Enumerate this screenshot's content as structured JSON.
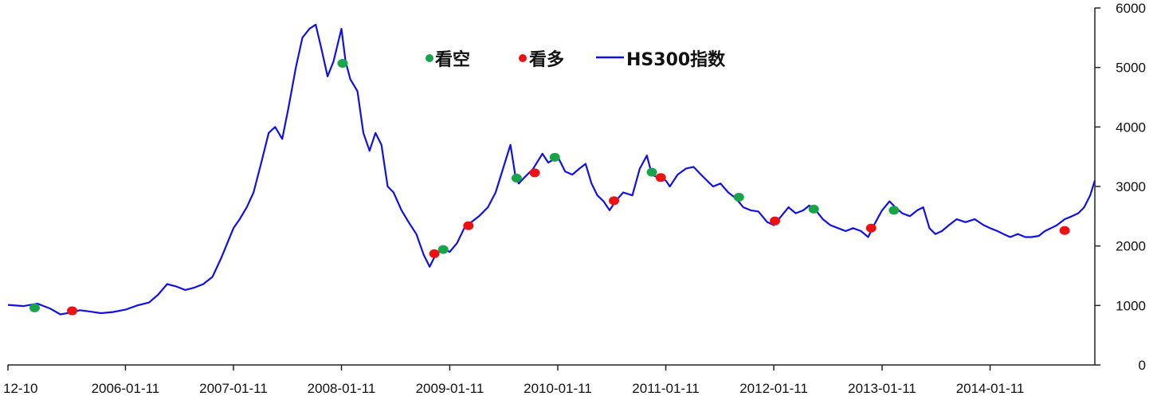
{
  "chart_data": {
    "type": "line",
    "title": "",
    "xlabel": "",
    "ylabel": "",
    "ylim": [
      0,
      6000
    ],
    "yticks": [
      0,
      1000,
      2000,
      3000,
      4000,
      5000,
      6000
    ],
    "xlim": [
      "2004-12-10",
      "2014-12-31"
    ],
    "xticks": [
      {
        "date": "2004-12-10",
        "label": "12-10"
      },
      {
        "date": "2006-01-11",
        "label": "2006-01-11"
      },
      {
        "date": "2007-01-11",
        "label": "2007-01-11"
      },
      {
        "date": "2008-01-11",
        "label": "2008-01-11"
      },
      {
        "date": "2009-01-11",
        "label": "2009-01-11"
      },
      {
        "date": "2010-01-11",
        "label": "2010-01-11"
      },
      {
        "date": "2011-01-11",
        "label": "2011-01-11"
      },
      {
        "date": "2012-01-11",
        "label": "2012-01-11"
      },
      {
        "date": "2013-01-11",
        "label": "2013-01-11"
      },
      {
        "date": "2014-01-11",
        "label": "2014-01-11"
      }
    ],
    "grid": false,
    "legend_position": "top-center",
    "legend": [
      {
        "label": "看空",
        "marker": "dot",
        "color": "#19a34a"
      },
      {
        "label": "看多",
        "marker": "dot",
        "color": "#ee1111"
      },
      {
        "label": "HS300指数",
        "marker": "line",
        "color": "#1010e8"
      }
    ],
    "series": [
      {
        "name": "HS300指数",
        "color": "#1010e8",
        "points": [
          [
            "2004-12-10",
            1010
          ],
          [
            "2005-02-01",
            990
          ],
          [
            "2005-03-20",
            1030
          ],
          [
            "2005-05-01",
            950
          ],
          [
            "2005-06-05",
            850
          ],
          [
            "2005-07-10",
            880
          ],
          [
            "2005-08-10",
            920
          ],
          [
            "2005-09-10",
            900
          ],
          [
            "2005-10-20",
            870
          ],
          [
            "2005-12-01",
            890
          ],
          [
            "2006-01-11",
            930
          ],
          [
            "2006-02-20",
            1000
          ],
          [
            "2006-04-01",
            1050
          ],
          [
            "2006-05-01",
            1180
          ],
          [
            "2006-06-01",
            1360
          ],
          [
            "2006-07-01",
            1320
          ],
          [
            "2006-08-01",
            1260
          ],
          [
            "2006-09-01",
            1300
          ],
          [
            "2006-10-01",
            1360
          ],
          [
            "2006-11-01",
            1480
          ],
          [
            "2006-12-01",
            1800
          ],
          [
            "2007-01-11",
            2300
          ],
          [
            "2007-02-01",
            2450
          ],
          [
            "2007-02-25",
            2650
          ],
          [
            "2007-03-20",
            2900
          ],
          [
            "2007-04-15",
            3400
          ],
          [
            "2007-05-10",
            3900
          ],
          [
            "2007-06-01",
            4000
          ],
          [
            "2007-06-25",
            3800
          ],
          [
            "2007-07-15",
            4300
          ],
          [
            "2007-08-10",
            5000
          ],
          [
            "2007-09-01",
            5500
          ],
          [
            "2007-09-25",
            5650
          ],
          [
            "2007-10-16",
            5720
          ],
          [
            "2007-11-05",
            5300
          ],
          [
            "2007-11-25",
            4850
          ],
          [
            "2007-12-15",
            5100
          ],
          [
            "2008-01-11",
            5650
          ],
          [
            "2008-01-25",
            5100
          ],
          [
            "2008-02-10",
            4800
          ],
          [
            "2008-03-05",
            4600
          ],
          [
            "2008-03-25",
            3900
          ],
          [
            "2008-04-15",
            3600
          ],
          [
            "2008-05-05",
            3900
          ],
          [
            "2008-05-25",
            3700
          ],
          [
            "2008-06-15",
            3000
          ],
          [
            "2008-07-05",
            2900
          ],
          [
            "2008-08-01",
            2600
          ],
          [
            "2008-08-25",
            2400
          ],
          [
            "2008-09-20",
            2200
          ],
          [
            "2008-10-15",
            1850
          ],
          [
            "2008-11-04",
            1650
          ],
          [
            "2008-11-25",
            1860
          ],
          [
            "2008-12-20",
            1950
          ],
          [
            "2009-01-11",
            1900
          ],
          [
            "2009-02-05",
            2050
          ],
          [
            "2009-03-01",
            2300
          ],
          [
            "2009-03-25",
            2400
          ],
          [
            "2009-04-20",
            2500
          ],
          [
            "2009-05-20",
            2650
          ],
          [
            "2009-06-15",
            2900
          ],
          [
            "2009-07-10",
            3300
          ],
          [
            "2009-08-04",
            3700
          ],
          [
            "2009-08-20",
            3200
          ],
          [
            "2009-09-01",
            3050
          ],
          [
            "2009-09-20",
            3150
          ],
          [
            "2009-10-20",
            3300
          ],
          [
            "2009-11-20",
            3550
          ],
          [
            "2009-12-10",
            3400
          ],
          [
            "2010-01-11",
            3500
          ],
          [
            "2010-02-05",
            3250
          ],
          [
            "2010-03-01",
            3200
          ],
          [
            "2010-03-25",
            3300
          ],
          [
            "2010-04-15",
            3380
          ],
          [
            "2010-05-05",
            3050
          ],
          [
            "2010-05-25",
            2850
          ],
          [
            "2010-06-15",
            2750
          ],
          [
            "2010-07-05",
            2600
          ],
          [
            "2010-07-25",
            2750
          ],
          [
            "2010-08-20",
            2900
          ],
          [
            "2010-09-20",
            2850
          ],
          [
            "2010-10-15",
            3300
          ],
          [
            "2010-11-08",
            3520
          ],
          [
            "2010-11-25",
            3200
          ],
          [
            "2010-12-15",
            3150
          ],
          [
            "2011-01-11",
            3100
          ],
          [
            "2011-01-25",
            3000
          ],
          [
            "2011-02-20",
            3200
          ],
          [
            "2011-03-20",
            3300
          ],
          [
            "2011-04-15",
            3330
          ],
          [
            "2011-05-10",
            3200
          ],
          [
            "2011-05-30",
            3100
          ],
          [
            "2011-06-20",
            3000
          ],
          [
            "2011-07-15",
            3050
          ],
          [
            "2011-08-10",
            2900
          ],
          [
            "2011-09-05",
            2800
          ],
          [
            "2011-09-30",
            2650
          ],
          [
            "2011-10-25",
            2600
          ],
          [
            "2011-11-20",
            2580
          ],
          [
            "2011-12-20",
            2400
          ],
          [
            "2012-01-11",
            2350
          ],
          [
            "2012-02-05",
            2500
          ],
          [
            "2012-03-01",
            2650
          ],
          [
            "2012-03-25",
            2550
          ],
          [
            "2012-04-20",
            2600
          ],
          [
            "2012-05-10",
            2680
          ],
          [
            "2012-06-01",
            2600
          ],
          [
            "2012-06-25",
            2450
          ],
          [
            "2012-07-20",
            2350
          ],
          [
            "2012-08-15",
            2300
          ],
          [
            "2012-09-10",
            2250
          ],
          [
            "2012-10-05",
            2300
          ],
          [
            "2012-11-01",
            2250
          ],
          [
            "2012-11-25",
            2150
          ],
          [
            "2012-12-20",
            2400
          ],
          [
            "2013-01-11",
            2600
          ],
          [
            "2013-02-05",
            2750
          ],
          [
            "2013-02-25",
            2650
          ],
          [
            "2013-03-20",
            2550
          ],
          [
            "2013-04-15",
            2500
          ],
          [
            "2013-05-10",
            2600
          ],
          [
            "2013-05-30",
            2650
          ],
          [
            "2013-06-20",
            2300
          ],
          [
            "2013-07-10",
            2200
          ],
          [
            "2013-08-01",
            2250
          ],
          [
            "2013-08-25",
            2350
          ],
          [
            "2013-09-20",
            2450
          ],
          [
            "2013-10-20",
            2400
          ],
          [
            "2013-11-20",
            2450
          ],
          [
            "2013-12-20",
            2350
          ],
          [
            "2014-01-11",
            2300
          ],
          [
            "2014-02-05",
            2250
          ],
          [
            "2014-02-25",
            2200
          ],
          [
            "2014-03-20",
            2150
          ],
          [
            "2014-04-15",
            2200
          ],
          [
            "2014-05-10",
            2150
          ],
          [
            "2014-06-01",
            2150
          ],
          [
            "2014-06-25",
            2170
          ],
          [
            "2014-07-15",
            2250
          ],
          [
            "2014-08-05",
            2300
          ],
          [
            "2014-08-25",
            2350
          ],
          [
            "2014-09-20",
            2450
          ],
          [
            "2014-10-15",
            2500
          ],
          [
            "2014-11-05",
            2550
          ],
          [
            "2014-11-25",
            2650
          ],
          [
            "2014-12-15",
            2850
          ],
          [
            "2014-12-31",
            3100
          ]
        ]
      }
    ],
    "signals": [
      {
        "type": "看空",
        "date": "2005-03-10",
        "value": 960
      },
      {
        "type": "看多",
        "date": "2005-07-15",
        "value": 910
      },
      {
        "type": "看空",
        "date": "2008-01-15",
        "value": 5070
      },
      {
        "type": "看多",
        "date": "2008-11-20",
        "value": 1870
      },
      {
        "type": "看空",
        "date": "2008-12-20",
        "value": 1940
      },
      {
        "type": "看多",
        "date": "2009-03-15",
        "value": 2340
      },
      {
        "type": "看空",
        "date": "2009-08-25",
        "value": 3140
      },
      {
        "type": "看多",
        "date": "2009-10-25",
        "value": 3230
      },
      {
        "type": "看空",
        "date": "2010-01-01",
        "value": 3490
      },
      {
        "type": "看多",
        "date": "2010-07-20",
        "value": 2760
      },
      {
        "type": "看空",
        "date": "2010-11-25",
        "value": 3240
      },
      {
        "type": "看多",
        "date": "2010-12-25",
        "value": 3150
      },
      {
        "type": "看空",
        "date": "2011-09-15",
        "value": 2820
      },
      {
        "type": "看多",
        "date": "2012-01-15",
        "value": 2420
      },
      {
        "type": "看空",
        "date": "2012-05-25",
        "value": 2620
      },
      {
        "type": "看多",
        "date": "2012-12-05",
        "value": 2300
      },
      {
        "type": "看空",
        "date": "2013-02-20",
        "value": 2600
      },
      {
        "type": "看多",
        "date": "2014-09-20",
        "value": 2260
      }
    ]
  }
}
